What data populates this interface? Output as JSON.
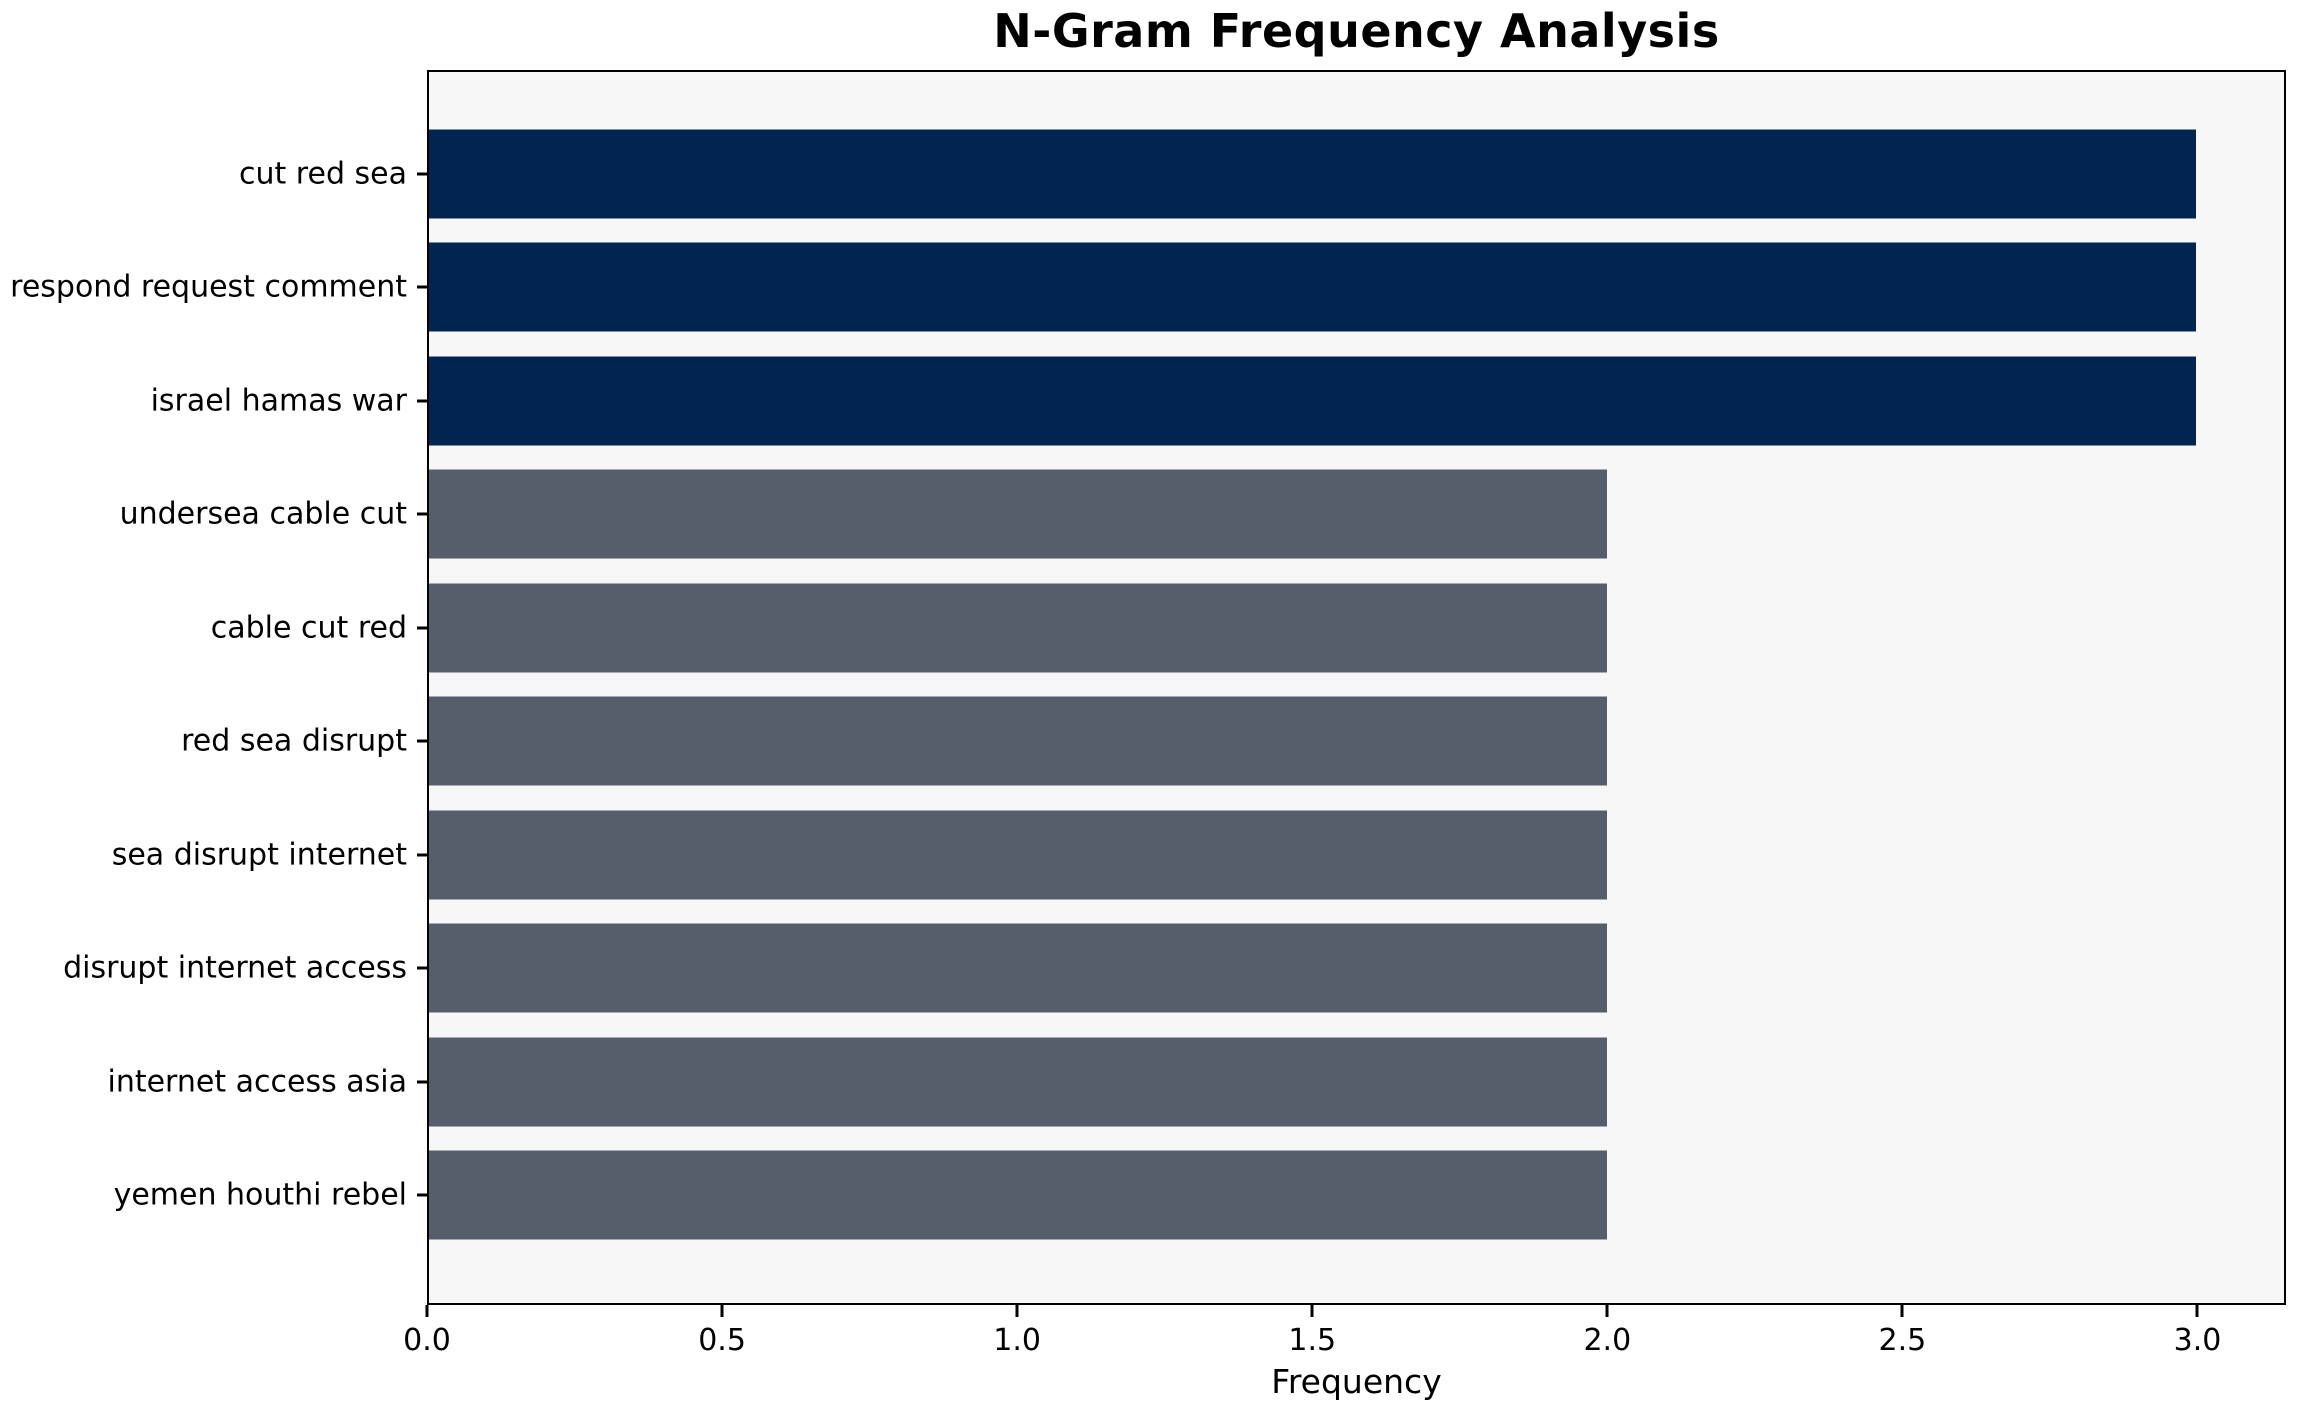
{
  "chart_data": {
    "type": "bar",
    "orientation": "horizontal",
    "title": "N-Gram Frequency Analysis",
    "xlabel": "Frequency",
    "ylabel": "",
    "categories": [
      "cut red sea",
      "respond request comment",
      "israel hamas war",
      "undersea cable cut",
      "cable cut red",
      "red sea disrupt",
      "sea disrupt internet",
      "disrupt internet access",
      "internet access asia",
      "yemen houthi rebel"
    ],
    "values": [
      3,
      3,
      3,
      2,
      2,
      2,
      2,
      2,
      2,
      2
    ],
    "bar_colors": [
      "#012450",
      "#012450",
      "#012450",
      "#565d6b",
      "#565d6b",
      "#565d6b",
      "#565d6b",
      "#565d6b",
      "#565d6b",
      "#565d6b"
    ],
    "xlim": [
      0,
      3.15
    ],
    "xticks": [
      0.0,
      0.5,
      1.0,
      1.5,
      2.0,
      2.5,
      3.0
    ],
    "xtick_labels": [
      "0.0",
      "0.5",
      "1.0",
      "1.5",
      "2.0",
      "2.5",
      "3.0"
    ],
    "grid": false,
    "legend": false,
    "colors": {
      "highlight_bar": "#012450",
      "normal_bar": "#565d6b",
      "plot_background": "#f7f7f8",
      "figure_background": "#ffffff",
      "spine": "#000000",
      "text": "#000000"
    }
  }
}
